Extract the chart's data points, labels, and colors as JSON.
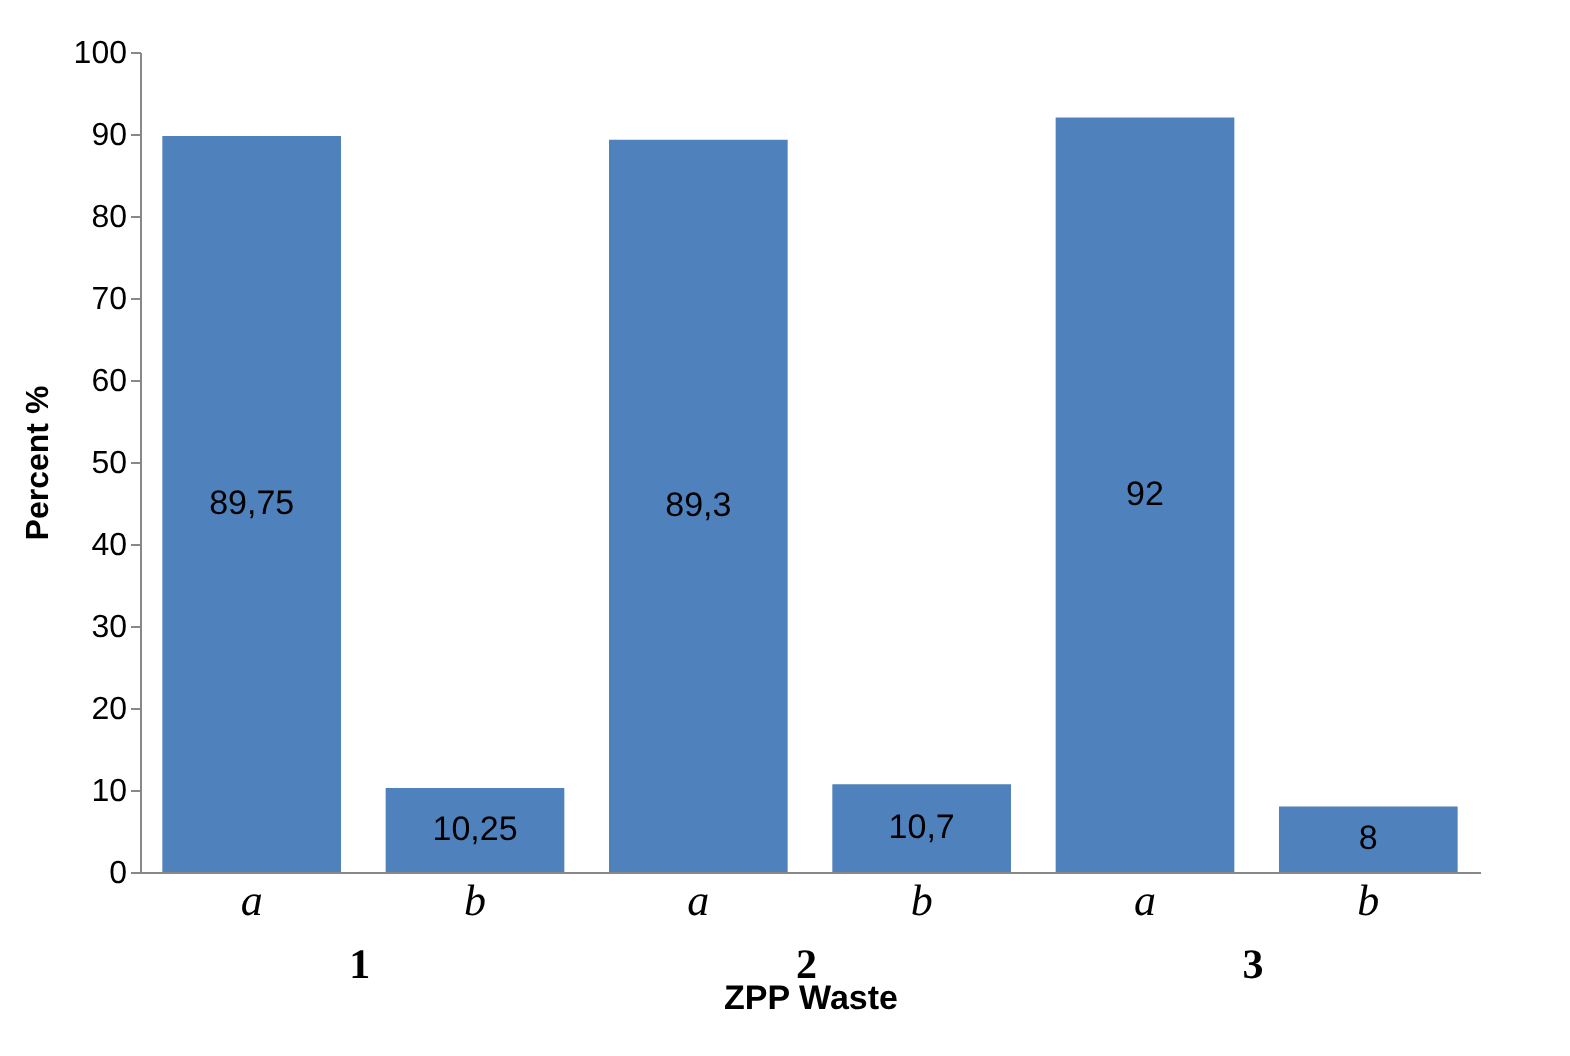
{
  "chart_data": {
    "type": "bar",
    "xlabel": "ZPP Waste",
    "ylabel": "Percent %",
    "categories": [
      "a",
      "b",
      "a",
      "b",
      "a",
      "b"
    ],
    "values": [
      89.75,
      10.25,
      89.3,
      10.7,
      92,
      8
    ],
    "value_labels": [
      "89,75",
      "10,25",
      "89,3",
      "10,7",
      "92",
      "8"
    ],
    "color": "#4f81bd",
    "annotations": [
      "1",
      "2",
      "3"
    ],
    "ylim": [
      0,
      100
    ],
    "yticks": [
      0,
      10,
      20,
      30,
      40,
      50,
      60,
      70,
      80,
      90,
      100
    ],
    "grid": false
  }
}
